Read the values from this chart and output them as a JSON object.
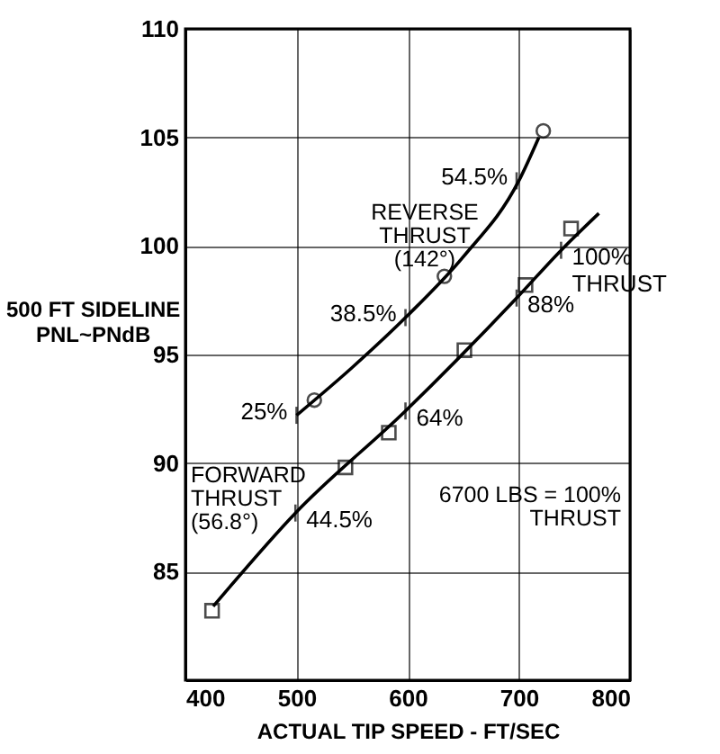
{
  "chart_data": {
    "type": "scatter",
    "xlabel": "ACTUAL TIP SPEED - FT/SEC",
    "ylabel": "500 FT SIDELINE\nPNL~PNdB",
    "xlim": [
      400,
      800
    ],
    "ylim": [
      80,
      110
    ],
    "xticks": [
      400,
      500,
      600,
      700,
      800
    ],
    "yticks": [
      85,
      90,
      95,
      100,
      105,
      110
    ],
    "grid": true,
    "series": [
      {
        "marker": "circle",
        "color": "#000000",
        "x": [
          516,
          633,
          722
        ],
        "values": [
          92.9,
          98.6,
          105.3
        ]
      },
      {
        "type": "line",
        "marker": "none",
        "color": "#000000",
        "x": [
          500,
          550,
          600,
          650,
          700,
          718
        ],
        "values": [
          92.2,
          94.4,
          96.8,
          99.5,
          103,
          105
        ]
      },
      {
        "marker": "square",
        "color": "#000000",
        "x": [
          424,
          544,
          583,
          651,
          706,
          747
        ],
        "values": [
          83.2,
          89.8,
          91.4,
          95.2,
          98.2,
          100.8
        ]
      },
      {
        "type": "line",
        "marker": "none",
        "color": "#000000",
        "x": [
          425,
          499,
          598,
          698,
          738,
          772
        ],
        "values": [
          83.4,
          87.7,
          92.4,
          97.6,
          99.8,
          101.5
        ]
      }
    ],
    "annotations": [
      {
        "text": "25%",
        "x": 500,
        "y": 92.2
      },
      {
        "text": "38.5%",
        "x": 598,
        "y": 96.7
      },
      {
        "text": "54.5%",
        "x": 698,
        "y": 103
      },
      {
        "text": "44.5%",
        "x": 499,
        "y": 87.7
      },
      {
        "text": "64%",
        "x": 598,
        "y": 92.4
      },
      {
        "text": "88%",
        "x": 698,
        "y": 97.6
      },
      {
        "text": "100%\nTHRUST",
        "x": 738,
        "y": 99.8
      },
      "REVERSE\nTHRUST\n(142°)",
      "FORWARD\nTHRUST\n(56.8°)",
      "6700 LBS = 100%\nTHRUST"
    ]
  }
}
